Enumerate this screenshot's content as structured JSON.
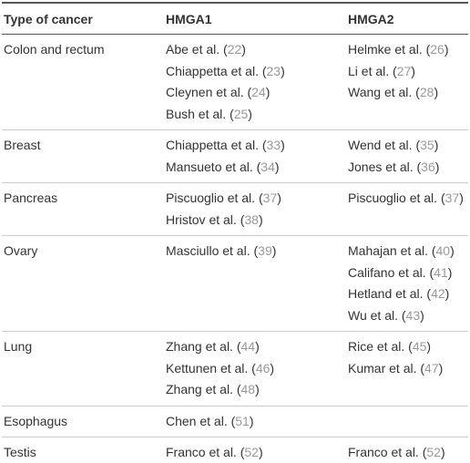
{
  "table": {
    "header": [
      "Type of cancer",
      "HMGA1",
      "HMGA2"
    ],
    "rows": [
      [
        "Colon and rectum",
        [
          "Abe et al. (22)",
          "Chiappetta et al. (23)",
          "Cleynen et al. (24)",
          "Bush et al. (25)"
        ],
        [
          "Helmke et al. (26)",
          "Li et al. (27)",
          "Wang et al. (28)"
        ]
      ],
      [
        "Breast",
        [
          "Chiappetta et al. (33)",
          "Mansueto et al. (34)"
        ],
        [
          "Wend et al. (35)",
          "Jones et al. (36)"
        ]
      ],
      [
        "Pancreas",
        [
          "Piscuoglio et al. (37)",
          "Hristov et al. (38)"
        ],
        [
          "Piscuoglio et al. (37)"
        ]
      ],
      [
        "Ovary",
        [
          "Masciullo et al. (39)"
        ],
        [
          "Mahajan et al. (40)",
          "Califano et al. (41)",
          "Hetland et al. (42)",
          "Wu et al. (43)"
        ]
      ],
      [
        "Lung",
        [
          "Zhang et al. (44)",
          "Kettunen et al. (46)",
          "Zhang et al. (48)"
        ],
        [
          "Rice et al. (45)",
          "Kumar et al. (47)"
        ]
      ],
      [
        "Esophagus",
        [
          "Chen et al. (51)"
        ],
        []
      ],
      [
        "Testis",
        [
          "Franco et al. (52)"
        ],
        [
          "Franco et al. (52)"
        ]
      ]
    ]
  }
}
